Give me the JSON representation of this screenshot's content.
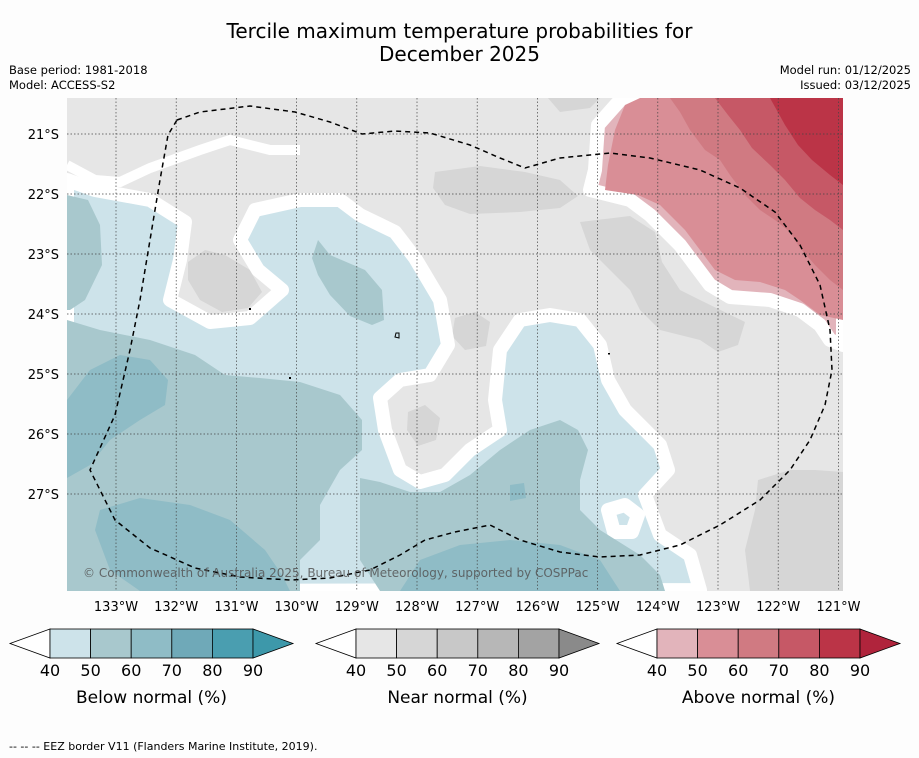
{
  "title_line1": "Tercile maximum temperature probabilities for",
  "title_line2": "December 2025",
  "meta_left": [
    "Base period: 1981-2018",
    "Model: ACCESS-S2"
  ],
  "meta_right": [
    "Model run: 01/12/2025",
    "Issued: 03/12/2025"
  ],
  "lat_labels": [
    "21°S",
    "22°S",
    "23°S",
    "24°S",
    "25°S",
    "26°S",
    "27°S"
  ],
  "lon_labels": [
    "133°W",
    "132°W",
    "131°W",
    "130°W",
    "129°W",
    "128°W",
    "127°W",
    "126°W",
    "125°W",
    "124°W",
    "123°W",
    "122°W",
    "121°W"
  ],
  "copyright": "© Commonwealth of Australia 2025, Bureau of Meteorology, supported by COSPPac",
  "colorbars": [
    {
      "title": "Below normal (%)",
      "ticks": [
        "40",
        "50",
        "60",
        "70",
        "80",
        "90"
      ],
      "colors": [
        "#cde3ea",
        "#a8c8cd",
        "#8fbcc6",
        "#6fa9b8",
        "#4a9eb0"
      ],
      "arrow": "#3d98aa"
    },
    {
      "title": "Near normal (%)",
      "ticks": [
        "40",
        "50",
        "60",
        "70",
        "80",
        "90"
      ],
      "colors": [
        "#e6e6e6",
        "#d6d6d6",
        "#c8c8c8",
        "#b7b7b7",
        "#a3a3a3"
      ],
      "arrow": "#8a8a8a"
    },
    {
      "title": "Above normal (%)",
      "ticks": [
        "40",
        "50",
        "60",
        "70",
        "80",
        "90"
      ],
      "colors": [
        "#e2b4bb",
        "#d98e96",
        "#d07a82",
        "#c65866",
        "#bb3447"
      ],
      "arrow": "#b0243c"
    }
  ],
  "footer": "--  --  -- EEZ border V11 (Flanders Marine Institute, 2019).",
  "colors": {
    "below": [
      "#cde3ea",
      "#a8c8cd",
      "#8fbcc6"
    ],
    "near": [
      "#e6e6e6",
      "#d6d6d6"
    ],
    "above": [
      "#e2b4bb",
      "#d98e96",
      "#d07a82",
      "#c65866",
      "#bb3447"
    ]
  }
}
